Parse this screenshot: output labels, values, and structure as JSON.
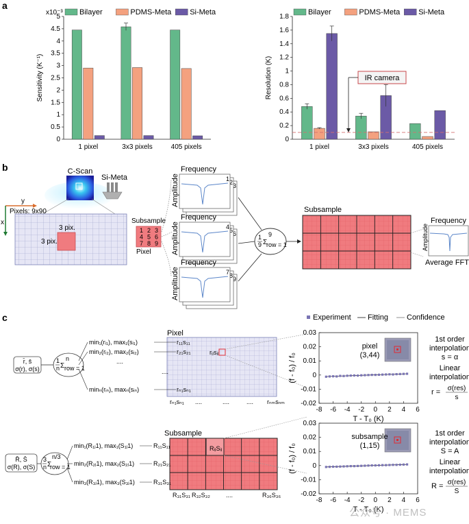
{
  "colors": {
    "bilayer": "#63b88a",
    "pdms": "#f4a17f",
    "simeta": "#6b5aa6",
    "threshold": "#d46f6f",
    "grid_fill": "#e6e6f5",
    "subsample_fill": "#f07b7f",
    "experiment": "#7a74b4"
  },
  "panel_labels": {
    "a": "a",
    "b": "b",
    "c": "c"
  },
  "chart_data": [
    {
      "type": "bar",
      "categories": [
        "1 pixel",
        "3x3 pixels",
        "405 pixels"
      ],
      "series": [
        {
          "name": "Bilayer",
          "values": [
            4.45,
            4.58,
            4.45
          ],
          "errors": [
            0,
            0.15,
            0
          ]
        },
        {
          "name": "PDMS-Meta",
          "values": [
            2.9,
            2.92,
            2.88
          ],
          "errors": [
            0,
            0,
            0
          ]
        },
        {
          "name": "Si-Meta",
          "values": [
            0.15,
            0.15,
            0.14
          ],
          "errors": [
            0,
            0,
            0
          ]
        }
      ],
      "ylabel": "Sensitivity (K⁻¹)",
      "yscale_label": "x10⁻³",
      "ylim": [
        0,
        5
      ],
      "yticks": [
        "0",
        "0.5",
        "1",
        "1.5",
        "2",
        "2.5",
        "3",
        "3.5",
        "4",
        "4.5",
        "5"
      ],
      "legend": "top"
    },
    {
      "type": "bar",
      "categories": [
        "1 pixel",
        "3x3 pixels",
        "405 pixels"
      ],
      "series": [
        {
          "name": "Bilayer",
          "values": [
            0.48,
            0.34,
            0.23
          ],
          "errors": [
            0.04,
            0.04,
            0
          ]
        },
        {
          "name": "PDMS-Meta",
          "values": [
            0.16,
            0.11,
            0.04
          ],
          "errors": [
            0.01,
            0,
            0
          ]
        },
        {
          "name": "Si-Meta",
          "values": [
            1.55,
            0.64,
            0.42
          ],
          "errors": [
            0.11,
            0.16,
            0
          ]
        }
      ],
      "threshold": {
        "value": 0.1,
        "label": "IR camera"
      },
      "ylabel": "Resolution (K)",
      "ylim": [
        0,
        1.8
      ],
      "yticks": [
        "0",
        "0.2",
        "0.4",
        "0.6",
        "0.8",
        "1",
        "1.2",
        "1.4",
        "1.6",
        "1.8"
      ],
      "legend": "top"
    },
    {
      "type": "scatter",
      "legend": [
        "Experiment",
        "Fitting",
        "Confidence"
      ],
      "inset_label": "pixel",
      "inset_coord": "(3,44)",
      "x": [
        -7,
        -6.5,
        -6,
        -5.5,
        -5,
        -4.5,
        -4,
        -3.5,
        -3,
        -2.5,
        -2,
        -1.5,
        -1,
        -0.5,
        0,
        0.5,
        1,
        1.5,
        2,
        2.5,
        3,
        3.5,
        4,
        4.5
      ],
      "y": [
        -0.0012,
        -0.001,
        -0.0009,
        -0.001,
        -0.0006,
        -0.0007,
        -0.0005,
        -0.0004,
        -0.0003,
        -0.0004,
        -0.0002,
        -0.0001,
        0.0,
        0.0001,
        0.0001,
        0.0002,
        0.0003,
        0.0004,
        0.0005,
        0.0004,
        0.0006,
        0.0007,
        0.0008,
        0.0009
      ],
      "xlabel": "T - T₀ (K)",
      "ylabel": "(f - f₀) / f₀",
      "xlim": [
        -8,
        6
      ],
      "ylim": [
        -0.02,
        0.03
      ],
      "xticks": [
        "-8",
        "-6",
        "-4",
        "-2",
        "0",
        "2",
        "4",
        "6"
      ],
      "yticks": [
        "-0.02",
        "-0.01",
        "0",
        "0.01",
        "0.02",
        "0.03"
      ]
    },
    {
      "type": "scatter",
      "inset_label": "subsample",
      "inset_coord": "(1,15)",
      "x": [
        -7,
        -6.5,
        -6,
        -5.5,
        -5,
        -4.5,
        -4,
        -3.5,
        -3,
        -2.5,
        -2,
        -1.5,
        -1,
        -0.5,
        0,
        0.5,
        1,
        1.5,
        2,
        2.5,
        3,
        3.5,
        4,
        4.5
      ],
      "y": [
        -0.001,
        -0.0009,
        -0.0008,
        -0.0008,
        -0.0007,
        -0.0006,
        -0.0005,
        -0.0004,
        -0.0004,
        -0.0003,
        -0.0002,
        -0.0001,
        0.0,
        0.0001,
        0.0001,
        0.0002,
        0.0003,
        0.0003,
        0.0004,
        0.0005,
        0.0005,
        0.0006,
        0.0007,
        0.0008
      ],
      "xlabel": "T - T₀ (K)",
      "ylabel": "(f - f₀) / f₀",
      "xlim": [
        -8,
        6
      ],
      "ylim": [
        -0.02,
        0.03
      ],
      "xticks": [
        "-8",
        "-6",
        "-4",
        "-2",
        "0",
        "2",
        "4",
        "6"
      ],
      "yticks": [
        "-0.02",
        "-0.01",
        "0",
        "0.01",
        "0.02",
        "0.03"
      ]
    }
  ],
  "panel_b": {
    "cscan": "C-Scan",
    "simeta": "Si-Meta",
    "axis_y": "y",
    "axis_x": "x",
    "pixels": "Pixels: 9x90",
    "block_w": "3 pix.",
    "block_h": "3 pix.",
    "subsample": "Subsample",
    "pixel": "Pixel",
    "nums": [
      "1",
      "2",
      "3",
      "4",
      "5",
      "6",
      "7",
      "8",
      "9"
    ],
    "frequency": "Frequency",
    "amplitude": "Amplitude",
    "stack_labels": [
      [
        "1",
        "2",
        "3"
      ],
      [
        "4",
        "5",
        "6"
      ],
      [
        "7",
        "8",
        "9"
      ]
    ],
    "sum_pre": "1",
    "sum_den": "9",
    "sum_sign": "Σ",
    "sum_top": "9",
    "sum_bottom": "row = 1",
    "subsample_title": "Subsample",
    "fft_freq": "Frequency",
    "fft_amp": "Amplitude",
    "avg_fft": "Average FFT"
  },
  "panel_c": {
    "pixel_title": "Pixel",
    "subsample_title": "Subsample",
    "top_results": "r̄, s̄",
    "top_sigma": "σ(r), σ(s)",
    "bot_results": "R̄, S̄",
    "bot_sigma": "σ(R), σ(S)",
    "top_sum_pre": "1",
    "top_sum_den": "n",
    "top_sum_top": "n",
    "top_sum_bottom": "row = 1",
    "bot_sum_pre": "3",
    "bot_sum_den": "n",
    "bot_sum_top": "n/3",
    "bot_sum_bottom": "row = 1",
    "sigma": "Σ",
    "top_rows": [
      "min₁(rᵢ₁), max₁(sᵢ₁)",
      "min₂(rᵢ₂), max₂(sᵢ₂)",
      "minₙ(rᵢₙ), maxₙ(sᵢₙ)"
    ],
    "top_cells": [
      "r₁₁s₁₁",
      "r₂₁s₂₁",
      "rₙ₁sₙ₁"
    ],
    "top_center": "rᵢⱼsᵢⱼ",
    "top_bottom_cells": [
      "rₙ₁sₙ₁",
      "....",
      "....",
      "....",
      "rₙₘsₙₘ"
    ],
    "ellipsis": "....",
    "bot_rows": [
      "min₁(R₁ⱼ1), max₁(S₁ⱼ1)",
      "min₂(R₂ⱼ1), max₂(S₂ⱼ1)",
      "min₃(R₃ⱼ1), max₃(S₃ⱼ1)"
    ],
    "bot_cells": [
      "R₁₁S₁₁",
      "R₂₁S₂₁",
      "R₃₁S₃₁"
    ],
    "bot_center": "RᵢⱼSᵢⱼ",
    "bot_bottom_cells": [
      "R₃₁S₃₁",
      "R₃₂S₃₂",
      "....",
      "R₃₆S₃₆"
    ],
    "interp1_a": "1st order",
    "interp1_b": "interpolation",
    "interp1_eq": "s = α",
    "lin_a": "Linear",
    "lin_b": "interpolation",
    "lin_lhs": "r =",
    "lin_num": "σ(res)",
    "lin_den": "s",
    "interp2_a": "1st order",
    "interp2_b": "interpolation",
    "interp2_eq": "S = A",
    "lin2_a": "Linear",
    "lin2_b": "interpolation",
    "lin2_lhs": "R =",
    "lin2_num": "σ(res)",
    "lin2_den": "S"
  },
  "watermark": "公众号 · MEMS"
}
